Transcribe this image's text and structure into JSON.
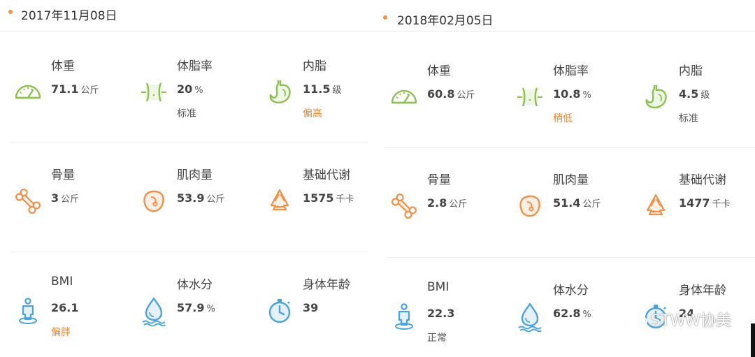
{
  "colors": {
    "green": "#8cc152",
    "orange": "#f0914a",
    "blue": "#4aa3df",
    "status_warn": "#e88a3a",
    "dot": "#f0914a"
  },
  "panels": [
    {
      "date": "2017年11月08日",
      "metrics": [
        {
          "label": "体重",
          "value": "71.1",
          "unit": "公斤",
          "status": "",
          "icon": "scale-gauge-icon"
        },
        {
          "label": "体脂率",
          "value": "20",
          "unit": "%",
          "status": "标准",
          "icon": "waist-icon"
        },
        {
          "label": "内脂",
          "value": "11.5",
          "unit": "级",
          "status": "偏高",
          "icon": "stomach-icon"
        },
        {
          "label": "骨量",
          "value": "3",
          "unit": "公斤",
          "status": "",
          "icon": "bone-icon"
        },
        {
          "label": "肌肉量",
          "value": "53.9",
          "unit": "公斤",
          "status": "",
          "icon": "muscle-icon"
        },
        {
          "label": "基础代谢",
          "value": "1575",
          "unit": "千卡",
          "status": "",
          "icon": "recycle-icon"
        },
        {
          "label": "BMI",
          "value": "26.1",
          "unit": "",
          "status": "偏胖",
          "icon": "person-icon"
        },
        {
          "label": "体水分",
          "value": "57.9",
          "unit": "%",
          "status": "",
          "icon": "water-drop-icon"
        },
        {
          "label": "身体年龄",
          "value": "39",
          "unit": "",
          "status": "",
          "icon": "stopwatch-icon"
        }
      ]
    },
    {
      "date": "2018年02月05日",
      "metrics": [
        {
          "label": "体重",
          "value": "60.8",
          "unit": "公斤",
          "status": "",
          "icon": "scale-gauge-icon"
        },
        {
          "label": "体脂率",
          "value": "10.8",
          "unit": "%",
          "status": "稍低",
          "icon": "waist-icon"
        },
        {
          "label": "内脂",
          "value": "4.5",
          "unit": "级",
          "status": "标准",
          "icon": "stomach-icon"
        },
        {
          "label": "骨量",
          "value": "2.8",
          "unit": "公斤",
          "status": "",
          "icon": "bone-icon"
        },
        {
          "label": "肌肉量",
          "value": "51.4",
          "unit": "公斤",
          "status": "",
          "icon": "muscle-icon"
        },
        {
          "label": "基础代谢",
          "value": "1477",
          "unit": "千卡",
          "status": "",
          "icon": "recycle-icon"
        },
        {
          "label": "BMI",
          "value": "22.3",
          "unit": "",
          "status": "正常",
          "icon": "person-icon"
        },
        {
          "label": "体水分",
          "value": "62.8",
          "unit": "%",
          "status": "",
          "icon": "water-drop-icon"
        },
        {
          "label": "身体年龄",
          "value": "24",
          "unit": "",
          "status": "",
          "icon": "stopwatch-icon"
        }
      ]
    }
  ],
  "watermark": {
    "text": "STWW协美"
  }
}
